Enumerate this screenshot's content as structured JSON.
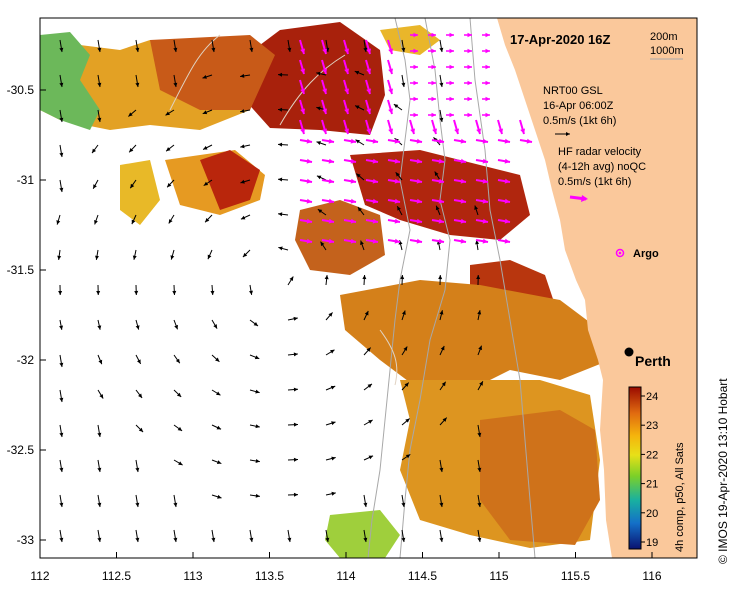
{
  "title": "17-Apr-2020 16Z",
  "depth_contours": [
    "200m",
    "1000m"
  ],
  "x_ticks": [
    "112",
    "112.5",
    "113",
    "113.5",
    "114",
    "114.5",
    "115",
    "115.5",
    "116"
  ],
  "y_ticks": [
    "-30.5",
    "-31",
    "-31.5",
    "-32",
    "-32.5",
    "-33"
  ],
  "gsl_legend": {
    "line1": "NRT00 GSL",
    "line2": "16-Apr 06:00Z",
    "line3": "0.5m/s (1kt 6h)"
  },
  "hf_legend": {
    "line1": "HF radar velocity",
    "line2": "(4-12h avg) noQC",
    "line3": "0.5m/s (1kt 6h)"
  },
  "argo_label": "Argo",
  "city_label": "Perth",
  "colorbar": {
    "ticks": [
      "24",
      "23",
      "22",
      "21",
      "20",
      "19"
    ],
    "caption": "4h comp, p50, All Sats"
  },
  "credit": "© IMOS 19-Apr-2020 13:10 Hobart",
  "colors": {
    "land": "#FAC89B",
    "velocity_hf": "#FF00FF",
    "sst_hot": "#B31A00",
    "sst_warm": "#E08A10",
    "sst_mid": "#F2C20A",
    "sst_cool": "#A6D41A",
    "sst_cold": "#1AA085"
  }
}
